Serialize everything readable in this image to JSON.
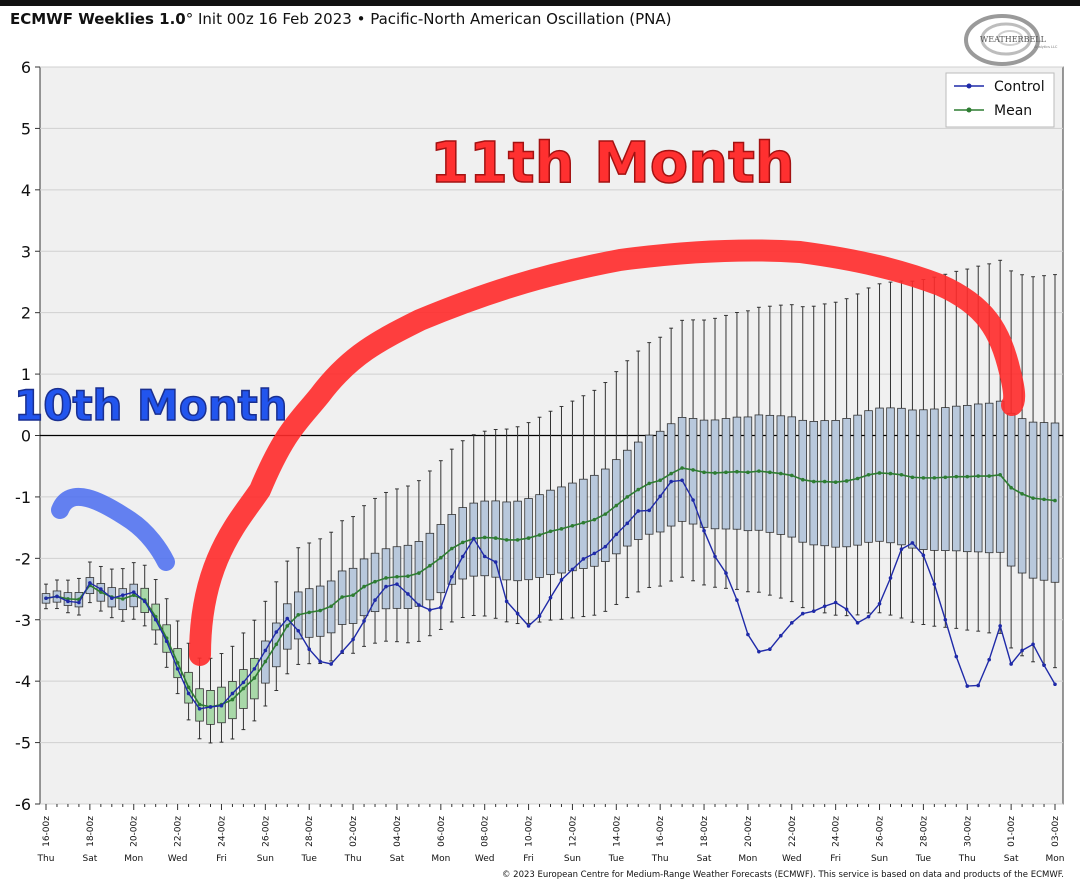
{
  "header": {
    "product": "ECMWF Weeklies 1.0",
    "degree": "°",
    "init": " Init 00z 16 Feb 2023",
    "separator": " • ",
    "index": "Pacific-North American Oscillation (PNA)"
  },
  "logo": {
    "text": "WEATHERBELL",
    "sub": "Analytics LLC"
  },
  "footer": {
    "copyright": "© 2023 European Centre for Medium-Range Weather Forecasts (ECMWF). This service is based on data and products of the ECMWF."
  },
  "annotations": {
    "month10": "10th Month",
    "month11": "11th Month"
  },
  "colors": {
    "control": "#1f2aa8",
    "mean": "#2e7d32",
    "box": "#b8c8dc",
    "annot_red": "#ff3030",
    "annot_blue": "#2255ee",
    "zero_line": "#000000"
  },
  "chart_data": {
    "type": "box",
    "ylim": [
      -6,
      6
    ],
    "yticks": [
      -6,
      -5,
      -4,
      -3,
      -2,
      -1,
      0,
      1,
      2,
      3,
      4,
      5,
      6
    ],
    "grid": true,
    "legend": {
      "placement": "top-right",
      "entries": [
        "Control",
        "Mean"
      ]
    },
    "x_tick_labels": [
      "16-00z",
      "18-00z",
      "20-00z",
      "22-00z",
      "24-00z",
      "26-00z",
      "28-00z",
      "02-00z",
      "04-00z",
      "06-00z",
      "08-00z",
      "10-00z",
      "12-00z",
      "14-00z",
      "16-00z",
      "18-00z",
      "20-00z",
      "22-00z",
      "24-00z",
      "26-00z",
      "28-00z",
      "30-00z",
      "01-00z",
      "03-00z"
    ],
    "day_labels": [
      "Thu",
      "Sat",
      "Mon",
      "Wed",
      "Fri",
      "Sun",
      "Tue",
      "Thu",
      "Sat",
      "Mon",
      "Wed",
      "Fri",
      "Sun",
      "Tue",
      "Thu",
      "Sat",
      "Mon",
      "Wed",
      "Fri",
      "Sun",
      "Tue",
      "Thu",
      "Sat",
      "Mon"
    ],
    "mean": [
      -2.65,
      -2.62,
      -2.66,
      -2.67,
      -2.44,
      -2.55,
      -2.63,
      -2.66,
      -2.6,
      -2.68,
      -2.95,
      -3.3,
      -3.7,
      -4.1,
      -4.38,
      -4.42,
      -4.38,
      -4.3,
      -4.12,
      -3.95,
      -3.68,
      -3.4,
      -3.1,
      -2.92,
      -2.88,
      -2.85,
      -2.78,
      -2.63,
      -2.6,
      -2.46,
      -2.38,
      -2.32,
      -2.3,
      -2.29,
      -2.24,
      -2.12,
      -1.99,
      -1.84,
      -1.74,
      -1.68,
      -1.66,
      -1.67,
      -1.7,
      -1.7,
      -1.67,
      -1.62,
      -1.56,
      -1.52,
      -1.47,
      -1.42,
      -1.37,
      -1.28,
      -1.14,
      -1.0,
      -0.88,
      -0.78,
      -0.73,
      -0.62,
      -0.53,
      -0.56,
      -0.6,
      -0.61,
      -0.6,
      -0.59,
      -0.6,
      -0.58,
      -0.6,
      -0.62,
      -0.65,
      -0.72,
      -0.75,
      -0.75,
      -0.76,
      -0.74,
      -0.7,
      -0.64,
      -0.61,
      -0.62,
      -0.64,
      -0.68,
      -0.69,
      -0.69,
      -0.68,
      -0.67,
      -0.67,
      -0.66,
      -0.66,
      -0.64,
      -0.85,
      -0.95,
      -1.02,
      -1.04,
      -1.06
    ],
    "control": [
      -2.65,
      -2.62,
      -2.7,
      -2.72,
      -2.4,
      -2.5,
      -2.65,
      -2.6,
      -2.55,
      -2.7,
      -3.0,
      -3.35,
      -3.8,
      -4.2,
      -4.45,
      -4.42,
      -4.4,
      -4.2,
      -4.02,
      -3.8,
      -3.5,
      -3.2,
      -2.98,
      -3.18,
      -3.48,
      -3.68,
      -3.72,
      -3.52,
      -3.32,
      -3.02,
      -2.68,
      -2.46,
      -2.42,
      -2.58,
      -2.76,
      -2.84,
      -2.8,
      -2.3,
      -1.97,
      -1.68,
      -1.97,
      -2.06,
      -2.7,
      -2.9,
      -3.1,
      -2.94,
      -2.64,
      -2.35,
      -2.18,
      -2.01,
      -1.92,
      -1.81,
      -1.61,
      -1.43,
      -1.23,
      -1.22,
      -0.99,
      -0.75,
      -0.73,
      -1.05,
      -1.55,
      -1.97,
      -2.24,
      -2.68,
      -3.24,
      -3.52,
      -3.48,
      -3.26,
      -3.05,
      -2.9,
      -2.86,
      -2.78,
      -2.72,
      -2.83,
      -3.05,
      -2.95,
      -2.74,
      -2.32,
      -1.85,
      -1.75,
      -1.95,
      -2.42,
      -3.0,
      -3.6,
      -4.08,
      -4.07,
      -3.65,
      -3.1,
      -3.72,
      -3.5,
      -3.4,
      -3.74,
      -4.05
    ]
  }
}
